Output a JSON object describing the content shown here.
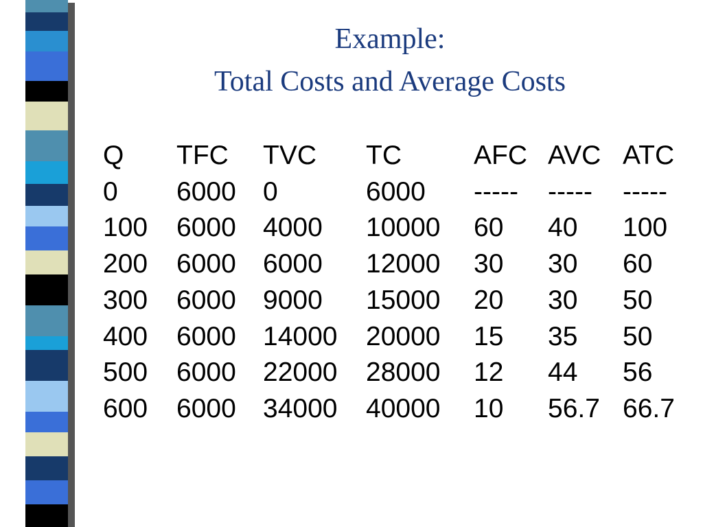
{
  "title": {
    "line1": "Example:",
    "line2": "Total Costs and Average Costs"
  },
  "table": {
    "header": [
      "Q",
      "TFC",
      "TVC",
      "TC",
      "AFC",
      "AVC",
      "ATC"
    ],
    "rows": [
      [
        "0",
        "6000",
        "0",
        "6000",
        "-----",
        "-----",
        "-----"
      ],
      [
        "100",
        "6000",
        "4000",
        "10000",
        "60",
        "40",
        "100"
      ],
      [
        "200",
        "6000",
        "6000",
        "12000",
        "30",
        "30",
        "60"
      ],
      [
        "300",
        "6000",
        "9000",
        "15000",
        "20",
        "30",
        "50"
      ],
      [
        "400",
        "6000",
        "14000",
        "20000",
        "15",
        "35",
        "50"
      ],
      [
        "500",
        "6000",
        "22000",
        "28000",
        "12",
        "44",
        "56"
      ],
      [
        "600",
        "6000",
        "34000",
        "40000",
        "10",
        "56.7",
        "66.7"
      ]
    ]
  }
}
